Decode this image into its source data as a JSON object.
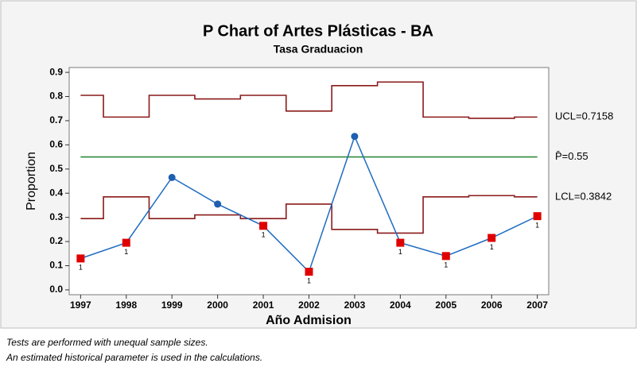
{
  "chart_data": {
    "type": "pchart",
    "title": "P Chart of Artes Plásticas - BA",
    "subtitle": "Tasa Graduacion",
    "xlabel": "Año Admision",
    "ylabel": "Proportion",
    "x": [
      1997,
      1998,
      1999,
      2000,
      2001,
      2002,
      2003,
      2004,
      2005,
      2006,
      2007
    ],
    "values": [
      0.13,
      0.195,
      0.465,
      0.355,
      0.265,
      0.075,
      0.635,
      0.195,
      0.14,
      0.215,
      0.305
    ],
    "tests": [
      "1",
      "1",
      null,
      null,
      "1",
      "1",
      null,
      "1",
      "1",
      "1",
      "1"
    ],
    "ucl": [
      0.805,
      0.715,
      0.805,
      0.79,
      0.805,
      0.74,
      0.845,
      0.86,
      0.715,
      0.71,
      0.715
    ],
    "lcl": [
      0.295,
      0.385,
      0.295,
      0.31,
      0.295,
      0.355,
      0.25,
      0.235,
      0.385,
      0.39,
      0.385
    ],
    "center": 0.55,
    "limit_labels": [
      {
        "value": 0.7158,
        "label": "UCL=0.7158"
      },
      {
        "value": 0.55,
        "label": "P̄=0.55"
      },
      {
        "value": 0.3842,
        "label": "LCL=0.3842"
      }
    ],
    "line_color": "#1f6cc1",
    "ok_color": "#1f5fb0",
    "flag_color": "#e00000",
    "limit_color": "#8b1a1a",
    "center_color": "#2e8b3a",
    "xlim": [
      1996.75,
      2007.25
    ],
    "xticks": [
      1997,
      1998,
      1999,
      2000,
      2001,
      2002,
      2003,
      2004,
      2005,
      2006,
      2007
    ],
    "ylim": [
      -0.02,
      0.92
    ],
    "yticks": [
      {
        "value": 0,
        "label": "0.0"
      },
      0.1,
      0.2,
      0.3,
      0.4,
      0.5,
      0.6,
      0.7,
      0.8,
      0.9
    ],
    "notes": [
      "Tests are performed with unequal sample sizes.",
      "An estimated historical parameter is used in the calculations."
    ]
  }
}
